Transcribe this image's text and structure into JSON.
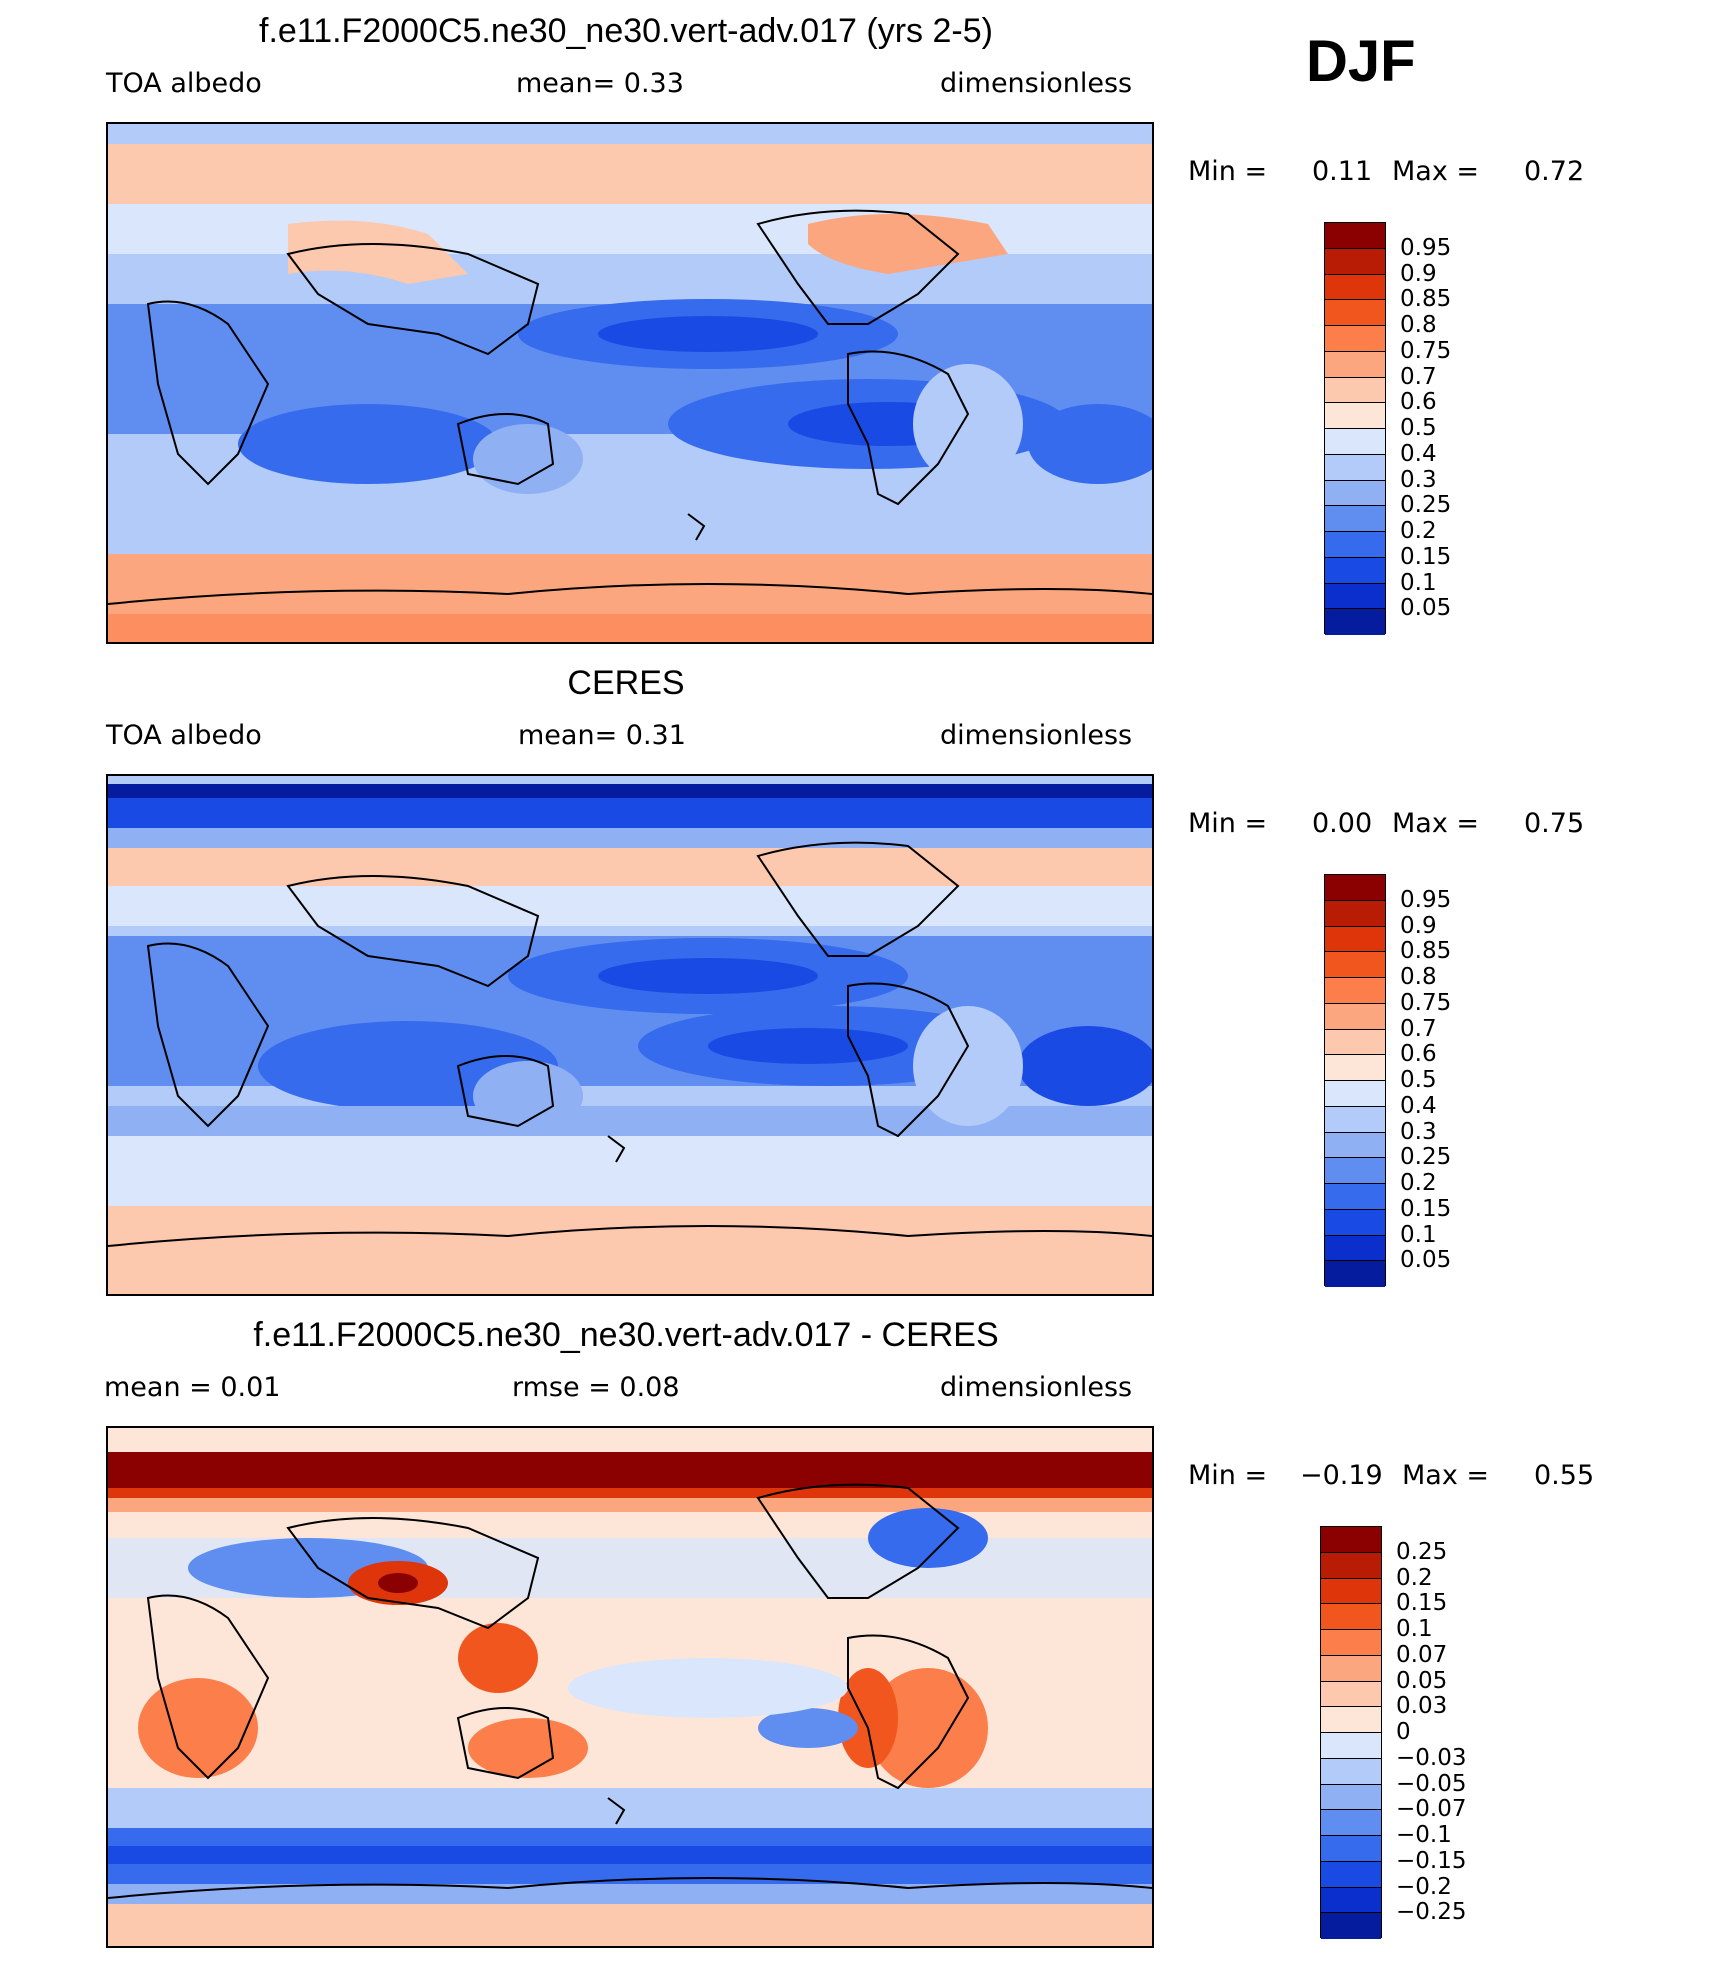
{
  "heading": "DJF",
  "panels": [
    {
      "title": "f.e11.F2000C5.ne30_ne30.vert-adv.017 (yrs 2-5)",
      "left_label": "TOA  albedo",
      "mid_label": "mean=     0.33",
      "units": "dimensionless",
      "min_label": "Min  =",
      "min_value": "0.11",
      "max_label": "Max  =",
      "max_value": "0.72",
      "colorbar_labels": [
        "0.95",
        "0.9",
        "0.85",
        "0.8",
        "0.75",
        "0.7",
        "0.6",
        "0.5",
        "0.4",
        "0.3",
        "0.25",
        "0.2",
        "0.15",
        "0.1",
        "0.05"
      ],
      "colorbar_colors": [
        "#8b0000",
        "#b81c05",
        "#de360a",
        "#f2561f",
        "#fb7e4b",
        "#fca680",
        "#fcc8ae",
        "#fde6d8",
        "#d9e6fb",
        "#b3cbf8",
        "#8fb1f3",
        "#5f8ef0",
        "#356bec",
        "#1a4ae4",
        "#0a2fcd",
        "#061c9e"
      ]
    },
    {
      "title": "CERES",
      "left_label": "TOA  albedo",
      "mid_label": "mean=     0.31",
      "units": "dimensionless",
      "min_label": "Min  =",
      "min_value": "0.00",
      "max_label": "Max  =",
      "max_value": "0.75",
      "colorbar_labels": [
        "0.95",
        "0.9",
        "0.85",
        "0.8",
        "0.75",
        "0.7",
        "0.6",
        "0.5",
        "0.4",
        "0.3",
        "0.25",
        "0.2",
        "0.15",
        "0.1",
        "0.05"
      ],
      "colorbar_colors": [
        "#8b0000",
        "#b81c05",
        "#de360a",
        "#f2561f",
        "#fb7e4b",
        "#fca680",
        "#fcc8ae",
        "#fde6d8",
        "#d9e6fb",
        "#b3cbf8",
        "#8fb1f3",
        "#5f8ef0",
        "#356bec",
        "#1a4ae4",
        "#0a2fcd",
        "#061c9e"
      ]
    },
    {
      "title": "f.e11.F2000C5.ne30_ne30.vert-adv.017 - CERES",
      "left_label": "mean  =     0.01",
      "mid_label": "rmse  =     0.08",
      "units": "dimensionless",
      "min_label": "Min  =",
      "min_value": "−0.19",
      "max_label": "Max  =",
      "max_value": "0.55",
      "colorbar_labels": [
        "0.25",
        "0.2",
        "0.15",
        "0.1",
        "0.07",
        "0.05",
        "0.03",
        "0",
        "−0.03",
        "−0.05",
        "−0.07",
        "−0.1",
        "−0.15",
        "−0.2",
        "−0.25"
      ],
      "colorbar_colors": [
        "#8b0000",
        "#b81c05",
        "#de360a",
        "#f2561f",
        "#fb7e4b",
        "#fca680",
        "#fcc8ae",
        "#fde6d8",
        "#d9e6fb",
        "#b3cbf8",
        "#8fb1f3",
        "#5f8ef0",
        "#356bec",
        "#1a4ae4",
        "#0a2fcd",
        "#061c9e"
      ]
    }
  ]
}
